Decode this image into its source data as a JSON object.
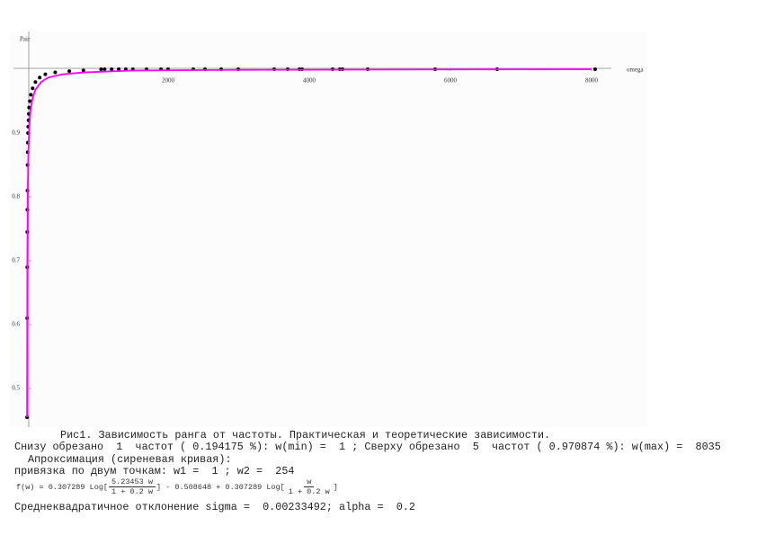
{
  "chart_data": {
    "type": "scatter",
    "x_label": "omega",
    "y_label": "Pair",
    "xlim": [
      -190,
      8250
    ],
    "ylim": [
      0.44,
      1.06
    ],
    "xticks": [
      2000,
      4000,
      6000,
      8000
    ],
    "yticks": [
      0.5,
      0.6,
      0.7,
      0.8,
      0.9
    ],
    "series": [
      {
        "type": "scatter",
        "color": "#000000",
        "x": [
          1,
          2,
          3,
          4,
          5,
          6,
          8,
          10,
          12,
          15,
          18,
          22,
          26,
          30,
          40,
          55,
          80,
          120,
          180,
          260,
          400,
          600,
          800,
          1050,
          1100,
          1200,
          1300,
          1400,
          1500,
          1694,
          1898,
          2000,
          2357,
          2522,
          2752,
          2994,
          3503,
          3694,
          3860,
          3898,
          4331,
          4433,
          4471,
          4828,
          5783,
          6662,
          8051
        ],
        "values": [
          0.455,
          0.61,
          0.69,
          0.745,
          0.78,
          0.81,
          0.85,
          0.87,
          0.885,
          0.9,
          0.91,
          0.92,
          0.93,
          0.94,
          0.95,
          0.96,
          0.97,
          0.98,
          0.987,
          0.992,
          0.995,
          0.997,
          0.998,
          1.0,
          1.0,
          1.0,
          1.0,
          1.0,
          1.0,
          1.0,
          1.0,
          1.0,
          1.0,
          1.0,
          1.0,
          1.0,
          1.0,
          1.0,
          1.0,
          1.0,
          1.0,
          1.0,
          1.0,
          1.0,
          1.0,
          1.0,
          1.0
        ]
      },
      {
        "type": "line",
        "color": "#ff00ff",
        "x": [
          1,
          5,
          10,
          20,
          30,
          50,
          80,
          120,
          200,
          300,
          500,
          800,
          1500,
          3000,
          8000
        ],
        "values": [
          0.455,
          0.7,
          0.8,
          0.87,
          0.905,
          0.935,
          0.955,
          0.968,
          0.98,
          0.987,
          0.992,
          0.995,
          0.998,
          0.999,
          1.0
        ]
      }
    ]
  },
  "text": {
    "caption": "Рис1. Зависимость ранга от частоты. Практическая и теоретические зависимости.",
    "cut": "Снизу обрезано  1  частот ( 0.194175 %): w(min) =  1 ; Сверху обрезано  5  частот ( 0.970874 %): w(max) =  8035",
    "approx": "Апроксимация (сиреневая кривая):",
    "anchor": "привязка по двум точкам: w1 =  1 ; w2 =  254",
    "formula": {
      "start": "f(w) = 0.307289 Log[",
      "num1": "5.23453 w",
      "den1": "1 + 0.2 w",
      "mid": "] - 0.508648 + 0.307289 Log[",
      "num2": "w",
      "den2": "1 + 0.2 w",
      "end": "]"
    },
    "sigma": "Среднеквадратичное отклонение sigma =  0.00233492; alpha =  0.2"
  }
}
